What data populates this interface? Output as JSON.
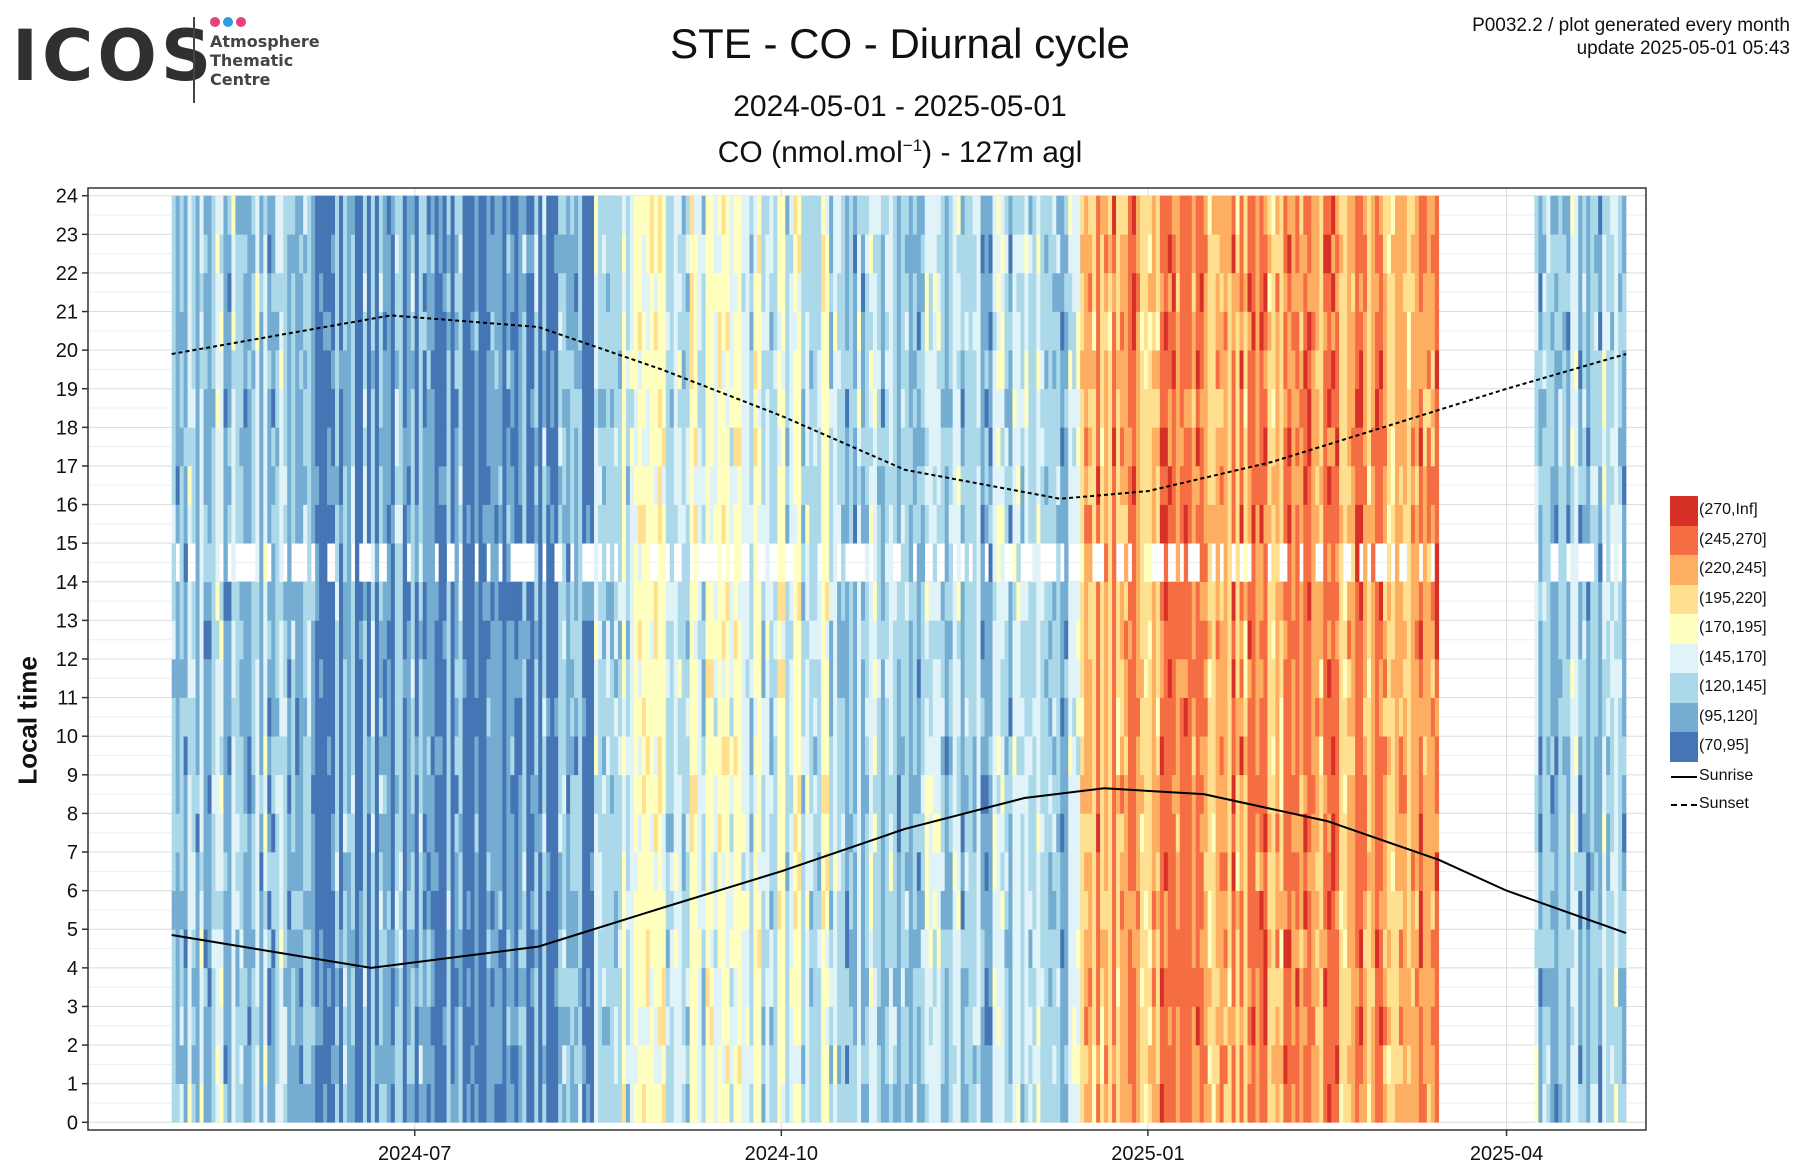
{
  "header": {
    "logo_word": "ICOS",
    "logo_lines": [
      "Atmosphere",
      "Thematic",
      "Centre"
    ],
    "logo_dot_colors": [
      "#e8407a",
      "#2a9ee0",
      "#e8407a"
    ],
    "title": "STE - CO - Diurnal cycle",
    "period": "2024-05-01 - 2025-05-01",
    "subtitle_main": "CO (nmol.mol",
    "subtitle_exp": "−1",
    "subtitle_tail": ") - 127m agl",
    "meta_line1": "P0032.2 / plot generated every month",
    "meta_line2": "update  2025-05-01 05:43"
  },
  "chart_data": {
    "type": "heatmap",
    "ylabel": "Local time",
    "x_range": [
      "2024-04-10",
      "2025-05-06"
    ],
    "data_x_range": [
      "2024-05-01",
      "2025-05-01"
    ],
    "y_range": [
      -0.2,
      24.2
    ],
    "x_tick_labels": [
      "2024-07",
      "2024-10",
      "2025-01",
      "2025-04"
    ],
    "x_tick_dates": [
      "2024-07-01",
      "2024-10-01",
      "2025-01-01",
      "2025-04-01"
    ],
    "y_tick_labels": [
      "0",
      "1",
      "2",
      "3",
      "4",
      "5",
      "6",
      "7",
      "8",
      "9",
      "10",
      "11",
      "12",
      "13",
      "14",
      "15",
      "16",
      "17",
      "18",
      "19",
      "20",
      "21",
      "22",
      "23",
      "24"
    ],
    "grid": true,
    "missing_data": [
      "2025-03-20",
      "2025-04-08"
    ],
    "legend_position": "right",
    "color_scale": [
      {
        "label": "(270,Inf]",
        "color": "#d73027"
      },
      {
        "label": "(245,270]",
        "color": "#f46d43"
      },
      {
        "label": "(220,245]",
        "color": "#fdae61"
      },
      {
        "label": "(195,220]",
        "color": "#fee090"
      },
      {
        "label": "(170,195]",
        "color": "#ffffbf"
      },
      {
        "label": "(145,170]",
        "color": "#e0f3f8"
      },
      {
        "label": "(120,145]",
        "color": "#abd9e9"
      },
      {
        "label": "(95,120]",
        "color": "#74add1"
      },
      {
        "label": "(70,95]",
        "color": "#4575b4"
      }
    ],
    "period_classes": [
      {
        "from": "2024-05-01",
        "to": "2024-06-01",
        "typical_class": "(120,145]"
      },
      {
        "from": "2024-06-01",
        "to": "2024-08-15",
        "typical_class": "(95,120]"
      },
      {
        "from": "2024-08-15",
        "to": "2024-10-15",
        "typical_class": "(145,170]"
      },
      {
        "from": "2024-10-15",
        "to": "2024-12-15",
        "typical_class": "(120,145]"
      },
      {
        "from": "2024-12-15",
        "to": "2025-03-15",
        "typical_class": "(220,245]"
      },
      {
        "from": "2025-04-08",
        "to": "2025-05-01",
        "typical_class": "(120,145]"
      }
    ],
    "lines": [
      {
        "name": "Sunrise",
        "style": "solid",
        "points": [
          [
            "2024-05-01",
            4.85
          ],
          [
            "2024-06-20",
            4.0
          ],
          [
            "2024-08-01",
            4.55
          ],
          [
            "2024-09-01",
            5.55
          ],
          [
            "2024-10-01",
            6.5
          ],
          [
            "2024-11-01",
            7.6
          ],
          [
            "2024-12-01",
            8.4
          ],
          [
            "2024-12-21",
            8.65
          ],
          [
            "2025-01-15",
            8.5
          ],
          [
            "2025-02-15",
            7.8
          ],
          [
            "2025-03-15",
            6.8
          ],
          [
            "2025-04-01",
            6.0
          ],
          [
            "2025-05-01",
            4.9
          ]
        ]
      },
      {
        "name": "Sunset",
        "style": "dashed",
        "points": [
          [
            "2024-05-01",
            19.9
          ],
          [
            "2024-06-25",
            20.9
          ],
          [
            "2024-08-01",
            20.6
          ],
          [
            "2024-09-01",
            19.5
          ],
          [
            "2024-10-01",
            18.3
          ],
          [
            "2024-11-01",
            16.9
          ],
          [
            "2024-12-10",
            16.15
          ],
          [
            "2025-01-01",
            16.35
          ],
          [
            "2025-02-01",
            17.1
          ],
          [
            "2025-03-01",
            18.0
          ],
          [
            "2025-04-01",
            19.0
          ],
          [
            "2025-05-01",
            19.9
          ]
        ]
      }
    ]
  }
}
